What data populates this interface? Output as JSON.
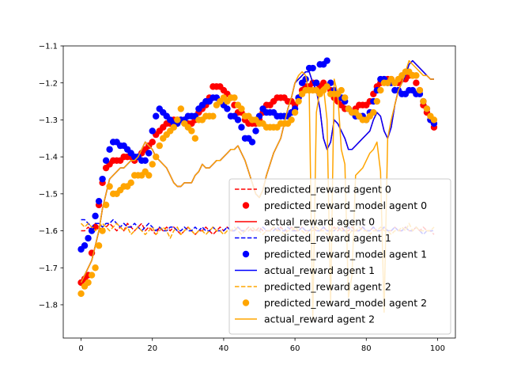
{
  "chart_data": {
    "type": "line",
    "title": "",
    "xlabel": "",
    "ylabel": "",
    "xlim": [
      -5,
      105
    ],
    "ylim": [
      -1.89,
      -1.1
    ],
    "xticks": [
      0,
      20,
      40,
      60,
      80,
      100
    ],
    "yticks": [
      -1.8,
      -1.7,
      -1.6,
      -1.5,
      -1.4,
      -1.3,
      -1.2,
      -1.1
    ],
    "legend_position": "lower-right",
    "x": [
      0,
      1,
      2,
      3,
      4,
      5,
      6,
      7,
      8,
      9,
      10,
      11,
      12,
      13,
      14,
      15,
      16,
      17,
      18,
      19,
      20,
      21,
      22,
      23,
      24,
      25,
      26,
      27,
      28,
      29,
      30,
      31,
      32,
      33,
      34,
      35,
      36,
      37,
      38,
      39,
      40,
      41,
      42,
      43,
      44,
      45,
      46,
      47,
      48,
      49,
      50,
      51,
      52,
      53,
      54,
      55,
      56,
      57,
      58,
      59,
      60,
      61,
      62,
      63,
      64,
      65,
      66,
      67,
      68,
      69,
      70,
      71,
      72,
      73,
      74,
      75,
      76,
      77,
      78,
      79,
      80,
      81,
      82,
      83,
      84,
      85,
      86,
      87,
      88,
      89,
      90,
      91,
      92,
      93,
      94,
      95,
      96,
      97,
      98,
      99
    ],
    "series": [
      {
        "name": "predicted_reward agent 0",
        "style": "dashed",
        "color": "#ff0000",
        "values": [
          -1.6,
          -1.6,
          -1.59,
          -1.6,
          -1.58,
          -1.59,
          -1.6,
          -1.59,
          -1.58,
          -1.59,
          -1.6,
          -1.59,
          -1.6,
          -1.58,
          -1.59,
          -1.6,
          -1.59,
          -1.58,
          -1.6,
          -1.59,
          -1.6,
          -1.61,
          -1.59,
          -1.6,
          -1.59,
          -1.6,
          -1.59,
          -1.6,
          -1.61,
          -1.6,
          -1.59,
          -1.6,
          -1.61,
          -1.6,
          -1.6,
          -1.59,
          -1.6,
          -1.61,
          -1.6,
          -1.59,
          -1.6,
          -1.59,
          -1.6,
          -1.6,
          -1.59,
          -1.6,
          -1.6,
          -1.59,
          -1.6,
          -1.6,
          -1.59,
          -1.6,
          -1.6,
          -1.6,
          -1.59,
          -1.6,
          -1.59,
          -1.6,
          -1.6,
          -1.59,
          -1.6,
          -1.6,
          -1.59,
          -1.6,
          -1.6,
          -1.59,
          -1.6,
          -1.6,
          -1.59,
          -1.6,
          -1.6,
          -1.59,
          -1.6,
          -1.59,
          -1.6,
          -1.6,
          -1.59,
          -1.6,
          -1.6,
          -1.59,
          -1.6,
          -1.6,
          -1.59,
          -1.6,
          -1.6,
          -1.59,
          -1.6,
          -1.6,
          -1.59,
          -1.6,
          -1.6,
          -1.59,
          -1.6,
          -1.6,
          -1.59,
          -1.6,
          -1.59,
          -1.6,
          -1.6,
          -1.61
        ]
      },
      {
        "name": "predicted_reward_model agent 0",
        "style": "markers",
        "color": "#ff0000",
        "values": [
          -1.74,
          -1.73,
          -1.72,
          -1.66,
          -1.59,
          -1.53,
          -1.47,
          -1.43,
          -1.42,
          -1.41,
          -1.41,
          -1.41,
          -1.4,
          -1.4,
          -1.4,
          -1.41,
          -1.4,
          -1.39,
          -1.38,
          -1.37,
          -1.36,
          -1.34,
          -1.33,
          -1.32,
          -1.31,
          -1.31,
          -1.3,
          -1.3,
          -1.3,
          -1.3,
          -1.31,
          -1.31,
          -1.3,
          -1.28,
          -1.27,
          -1.26,
          -1.24,
          -1.21,
          -1.21,
          -1.21,
          -1.22,
          -1.23,
          -1.24,
          -1.26,
          -1.28,
          -1.28,
          -1.3,
          -1.31,
          -1.31,
          -1.31,
          -1.3,
          -1.28,
          -1.26,
          -1.26,
          -1.25,
          -1.24,
          -1.24,
          -1.24,
          -1.25,
          -1.25,
          -1.26,
          -1.24,
          -1.22,
          -1.21,
          -1.21,
          -1.2,
          -1.2,
          -1.21,
          -1.2,
          -1.21,
          -1.22,
          -1.24,
          -1.25,
          -1.26,
          -1.27,
          -1.27,
          -1.28,
          -1.27,
          -1.26,
          -1.26,
          -1.26,
          -1.25,
          -1.23,
          -1.21,
          -1.2,
          -1.19,
          -1.19,
          -1.19,
          -1.2,
          -1.2,
          -1.19,
          -1.19,
          -1.18,
          -1.18,
          -1.2,
          -1.22,
          -1.26,
          -1.28,
          -1.3,
          -1.32
        ]
      },
      {
        "name": "actual_reward agent 0",
        "style": "solid",
        "color": "#ff0000",
        "values": [
          -1.74,
          -1.72,
          -1.7,
          -1.68,
          -1.64,
          -1.6,
          -1.54,
          -1.5,
          -1.46,
          -1.45,
          -1.44,
          -1.43,
          -1.43,
          -1.42,
          -1.41,
          -1.41,
          -1.4,
          -1.38,
          -1.36,
          -1.37,
          -1.38,
          -1.4,
          -1.41,
          -1.42,
          -1.43,
          -1.45,
          -1.47,
          -1.48,
          -1.48,
          -1.47,
          -1.47,
          -1.47,
          -1.45,
          -1.44,
          -1.42,
          -1.43,
          -1.43,
          -1.42,
          -1.41,
          -1.41,
          -1.4,
          -1.39,
          -1.38,
          -1.38,
          -1.37,
          -1.39,
          -1.41,
          -1.44,
          -1.47,
          -1.5,
          -1.51,
          -1.49,
          -1.45,
          -1.42,
          -1.39,
          -1.37,
          -1.35,
          -1.31,
          -1.27,
          -1.24,
          -1.2,
          -1.19,
          -1.18,
          -1.17,
          -1.17,
          -1.2,
          -1.22,
          -1.27,
          -1.35,
          -1.38,
          -1.36,
          -1.3,
          -1.31,
          -1.33,
          -1.35,
          -1.38,
          -1.38,
          -1.37,
          -1.36,
          -1.35,
          -1.34,
          -1.33,
          -1.3,
          -1.28,
          -1.29,
          -1.33,
          -1.35,
          -1.32,
          -1.26,
          -1.22,
          -1.2,
          -1.18,
          -1.15,
          -1.14,
          -1.15,
          -1.16,
          -1.17,
          -1.18,
          -1.19,
          -1.19
        ]
      },
      {
        "name": "predicted_reward agent 1",
        "style": "dashed",
        "color": "#0000ff",
        "values": [
          -1.57,
          -1.57,
          -1.58,
          -1.59,
          -1.58,
          -1.58,
          -1.59,
          -1.58,
          -1.58,
          -1.57,
          -1.58,
          -1.59,
          -1.58,
          -1.59,
          -1.59,
          -1.58,
          -1.59,
          -1.6,
          -1.59,
          -1.58,
          -1.59,
          -1.6,
          -1.59,
          -1.6,
          -1.6,
          -1.59,
          -1.59,
          -1.6,
          -1.6,
          -1.59,
          -1.6,
          -1.6,
          -1.59,
          -1.6,
          -1.59,
          -1.6,
          -1.6,
          -1.59,
          -1.6,
          -1.6,
          -1.6,
          -1.59,
          -1.6,
          -1.6,
          -1.59,
          -1.6,
          -1.6,
          -1.6,
          -1.59,
          -1.6,
          -1.6,
          -1.59,
          -1.6,
          -1.6,
          -1.6,
          -1.59,
          -1.6,
          -1.6,
          -1.59,
          -1.6,
          -1.6,
          -1.6,
          -1.59,
          -1.6,
          -1.6,
          -1.59,
          -1.6,
          -1.6,
          -1.59,
          -1.6,
          -1.6,
          -1.6,
          -1.59,
          -1.6,
          -1.6,
          -1.59,
          -1.6,
          -1.6,
          -1.6,
          -1.59,
          -1.6,
          -1.6,
          -1.59,
          -1.6,
          -1.6,
          -1.59,
          -1.6,
          -1.6,
          -1.59,
          -1.6,
          -1.6,
          -1.59,
          -1.6,
          -1.6,
          -1.59,
          -1.6,
          -1.61,
          -1.6,
          -1.6,
          -1.6
        ]
      },
      {
        "name": "predicted_reward_model agent 1",
        "style": "markers",
        "color": "#0000ff",
        "values": [
          -1.65,
          -1.64,
          -1.62,
          -1.6,
          -1.56,
          -1.52,
          -1.46,
          -1.41,
          -1.38,
          -1.36,
          -1.36,
          -1.37,
          -1.37,
          -1.38,
          -1.39,
          -1.4,
          -1.4,
          -1.41,
          -1.41,
          -1.39,
          -1.33,
          -1.29,
          -1.27,
          -1.28,
          -1.29,
          -1.3,
          -1.31,
          -1.31,
          -1.3,
          -1.3,
          -1.29,
          -1.29,
          -1.29,
          -1.27,
          -1.26,
          -1.25,
          -1.25,
          -1.24,
          -1.24,
          -1.25,
          -1.26,
          -1.27,
          -1.29,
          -1.29,
          -1.3,
          -1.32,
          -1.35,
          -1.35,
          -1.36,
          -1.33,
          -1.29,
          -1.27,
          -1.28,
          -1.28,
          -1.28,
          -1.29,
          -1.29,
          -1.29,
          -1.29,
          -1.28,
          -1.27,
          -1.24,
          -1.2,
          -1.19,
          -1.16,
          -1.16,
          -1.2,
          -1.15,
          -1.15,
          -1.14,
          -1.2,
          -1.22,
          -1.23,
          -1.24,
          -1.25,
          -1.27,
          -1.28,
          -1.29,
          -1.29,
          -1.29,
          -1.3,
          -1.28,
          -1.25,
          -1.22,
          -1.19,
          -1.19,
          -1.2,
          -1.2,
          -1.22,
          -1.22,
          -1.23,
          -1.23,
          -1.22,
          -1.22,
          -1.23,
          -1.23,
          -1.25,
          -1.27,
          -1.3,
          -1.31
        ]
      },
      {
        "name": "actual_reward agent 1",
        "style": "solid",
        "color": "#0000ff",
        "values": [
          -1.74,
          -1.72,
          -1.7,
          -1.68,
          -1.64,
          -1.6,
          -1.54,
          -1.5,
          -1.46,
          -1.45,
          -1.44,
          -1.43,
          -1.43,
          -1.42,
          -1.41,
          -1.41,
          -1.4,
          -1.38,
          -1.36,
          -1.37,
          -1.38,
          -1.4,
          -1.41,
          -1.42,
          -1.43,
          -1.45,
          -1.47,
          -1.48,
          -1.48,
          -1.47,
          -1.47,
          -1.47,
          -1.45,
          -1.44,
          -1.42,
          -1.43,
          -1.43,
          -1.42,
          -1.41,
          -1.41,
          -1.4,
          -1.39,
          -1.38,
          -1.38,
          -1.37,
          -1.39,
          -1.41,
          -1.44,
          -1.47,
          -1.5,
          -1.51,
          -1.49,
          -1.45,
          -1.42,
          -1.39,
          -1.37,
          -1.35,
          -1.31,
          -1.27,
          -1.24,
          -1.2,
          -1.19,
          -1.18,
          -1.17,
          -1.17,
          -1.2,
          -1.22,
          -1.27,
          -1.35,
          -1.38,
          -1.36,
          -1.3,
          -1.31,
          -1.33,
          -1.35,
          -1.38,
          -1.38,
          -1.37,
          -1.36,
          -1.35,
          -1.34,
          -1.33,
          -1.3,
          -1.28,
          -1.29,
          -1.33,
          -1.35,
          -1.32,
          -1.26,
          -1.22,
          -1.2,
          -1.18,
          -1.15,
          -1.14,
          -1.15,
          -1.16,
          -1.17,
          -1.18,
          -1.19,
          -1.19
        ]
      },
      {
        "name": "predicted_reward agent 2",
        "style": "dashed",
        "color": "#ffa500",
        "values": [
          -1.58,
          -1.59,
          -1.58,
          -1.59,
          -1.6,
          -1.59,
          -1.58,
          -1.59,
          -1.6,
          -1.59,
          -1.58,
          -1.59,
          -1.6,
          -1.59,
          -1.61,
          -1.6,
          -1.59,
          -1.6,
          -1.61,
          -1.6,
          -1.59,
          -1.61,
          -1.6,
          -1.59,
          -1.6,
          -1.62,
          -1.6,
          -1.59,
          -1.61,
          -1.6,
          -1.59,
          -1.6,
          -1.61,
          -1.6,
          -1.6,
          -1.61,
          -1.6,
          -1.59,
          -1.6,
          -1.6,
          -1.61,
          -1.6,
          -1.6,
          -1.59,
          -1.6,
          -1.61,
          -1.6,
          -1.6,
          -1.59,
          -1.6,
          -1.6,
          -1.61,
          -1.6,
          -1.6,
          -1.59,
          -1.6,
          -1.6,
          -1.61,
          -1.6,
          -1.6,
          -1.59,
          -1.6,
          -1.6,
          -1.61,
          -1.6,
          -1.6,
          -1.59,
          -1.6,
          -1.6,
          -1.61,
          -1.6,
          -1.6,
          -1.59,
          -1.6,
          -1.6,
          -1.61,
          -1.6,
          -1.6,
          -1.59,
          -1.6,
          -1.6,
          -1.61,
          -1.6,
          -1.6,
          -1.59,
          -1.6,
          -1.6,
          -1.61,
          -1.6,
          -1.6,
          -1.59,
          -1.6,
          -1.58,
          -1.6,
          -1.59,
          -1.6,
          -1.6,
          -1.6,
          -1.6,
          -1.59
        ]
      },
      {
        "name": "predicted_reward_model agent 2",
        "style": "markers",
        "color": "#ffa500",
        "values": [
          -1.77,
          -1.75,
          -1.74,
          -1.72,
          -1.7,
          -1.64,
          -1.6,
          -1.53,
          -1.48,
          -1.5,
          -1.5,
          -1.49,
          -1.48,
          -1.48,
          -1.47,
          -1.45,
          -1.45,
          -1.45,
          -1.44,
          -1.45,
          -1.42,
          -1.4,
          -1.37,
          -1.35,
          -1.34,
          -1.33,
          -1.32,
          -1.3,
          -1.27,
          -1.31,
          -1.32,
          -1.33,
          -1.35,
          -1.3,
          -1.3,
          -1.29,
          -1.29,
          -1.29,
          -1.26,
          -1.25,
          -1.24,
          -1.25,
          -1.24,
          -1.24,
          -1.26,
          -1.27,
          -1.29,
          -1.29,
          -1.3,
          -1.3,
          -1.31,
          -1.31,
          -1.32,
          -1.32,
          -1.32,
          -1.32,
          -1.31,
          -1.31,
          -1.31,
          -1.3,
          -1.28,
          -1.25,
          -1.23,
          -1.22,
          -1.22,
          -1.22,
          -1.22,
          -1.23,
          -1.22,
          -1.21,
          -1.23,
          -1.23,
          -1.23,
          -1.22,
          -1.24,
          -1.27,
          -1.28,
          -1.28,
          -1.29,
          -1.3,
          -1.3,
          -1.29,
          -1.28,
          -1.25,
          -1.22,
          -1.2,
          -1.2,
          -1.19,
          -1.2,
          -1.19,
          -1.18,
          -1.17,
          -1.17,
          -1.18,
          -1.18,
          -1.22,
          -1.25,
          -1.27,
          -1.29,
          -1.3
        ]
      },
      {
        "name": "actual_reward agent 2",
        "style": "solid",
        "color": "#ffa500",
        "values": [
          -1.74,
          -1.72,
          -1.7,
          -1.68,
          -1.64,
          -1.6,
          -1.54,
          -1.5,
          -1.46,
          -1.45,
          -1.44,
          -1.43,
          -1.43,
          -1.42,
          -1.41,
          -1.41,
          -1.4,
          -1.38,
          -1.36,
          -1.37,
          -1.38,
          -1.4,
          -1.41,
          -1.42,
          -1.43,
          -1.45,
          -1.47,
          -1.48,
          -1.48,
          -1.47,
          -1.47,
          -1.47,
          -1.45,
          -1.44,
          -1.42,
          -1.43,
          -1.43,
          -1.42,
          -1.41,
          -1.41,
          -1.4,
          -1.39,
          -1.38,
          -1.38,
          -1.37,
          -1.39,
          -1.41,
          -1.44,
          -1.47,
          -1.5,
          -1.51,
          -1.49,
          -1.45,
          -1.42,
          -1.39,
          -1.37,
          -1.35,
          -1.31,
          -1.27,
          -1.24,
          -1.2,
          -1.18,
          -1.17,
          -1.18,
          -1.23,
          -1.84,
          -1.28,
          -1.22,
          -1.21,
          -1.3,
          -1.8,
          -1.19,
          -1.23,
          -1.38,
          -1.42,
          -1.78,
          -1.72,
          -1.45,
          -1.44,
          -1.43,
          -1.41,
          -1.39,
          -1.38,
          -1.36,
          -1.44,
          -1.82,
          -1.35,
          -1.3,
          -1.26,
          -1.22,
          -1.2,
          -1.17,
          -1.14,
          -1.15,
          -1.16,
          -1.17,
          -1.18,
          -1.18,
          -1.19,
          -1.19
        ]
      }
    ]
  }
}
